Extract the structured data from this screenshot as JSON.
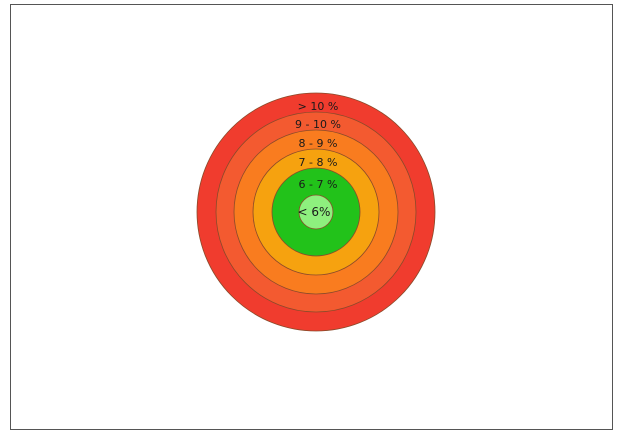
{
  "rings": [
    {
      "label": "> 10 %",
      "color": "#f03c2e"
    },
    {
      "label": "9 - 10 %",
      "color": "#f35a30"
    },
    {
      "label": "8 - 9 %",
      "color": "#f97c1f"
    },
    {
      "label": "7 - 8 %",
      "color": "#f6a20f"
    },
    {
      "label": "6 - 7 %",
      "color": "#22c21a"
    },
    {
      "label": "< 6%",
      "color": "#8ef07e"
    }
  ]
}
